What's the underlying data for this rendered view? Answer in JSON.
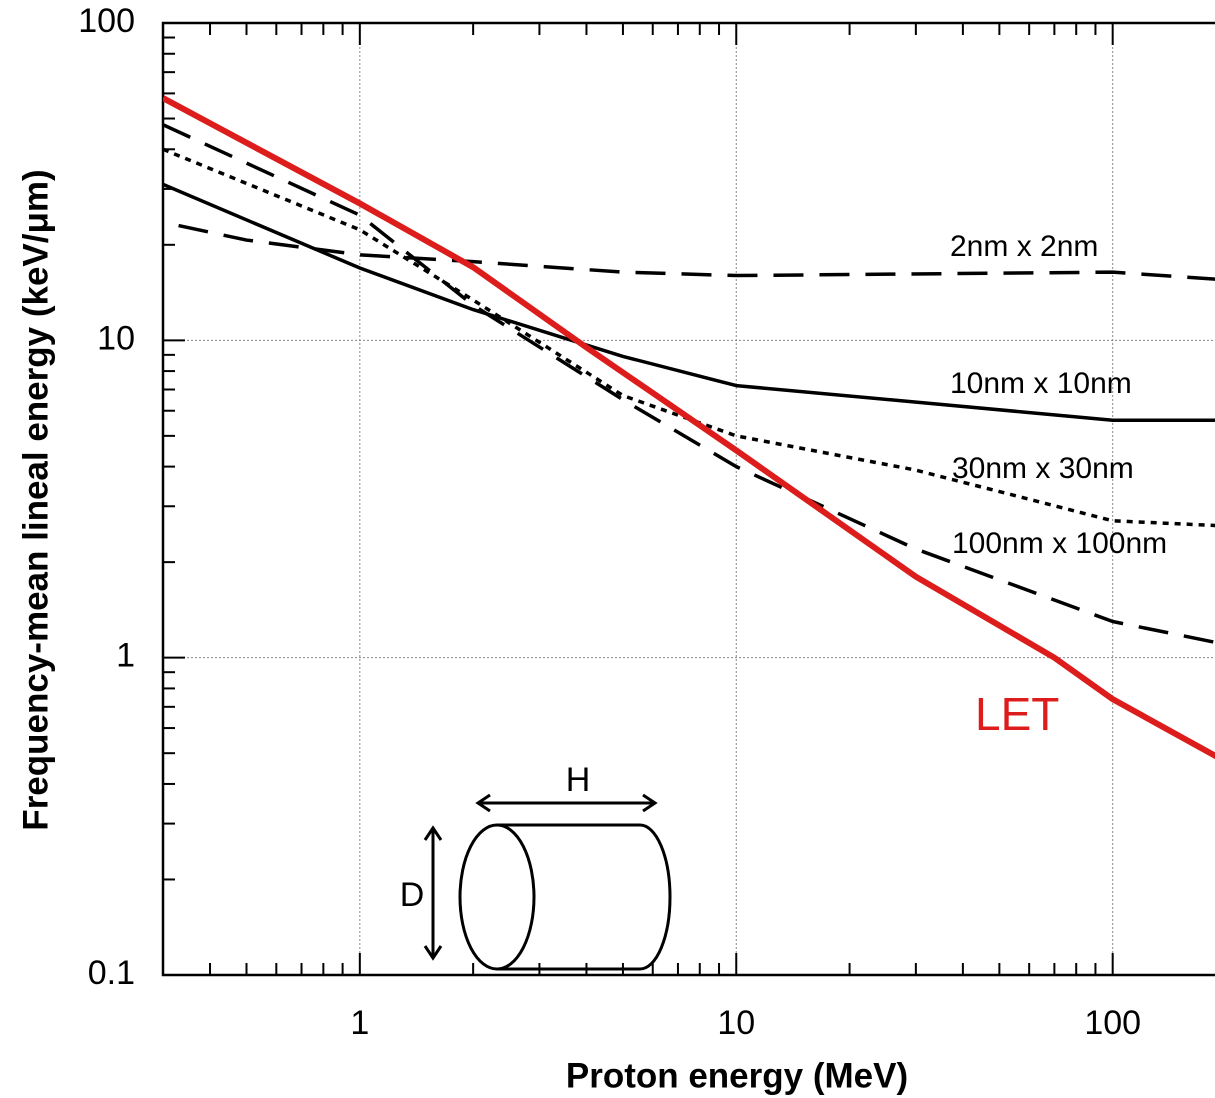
{
  "chart_data": {
    "type": "line",
    "x_label": "Proton energy (MeV)",
    "y_label": "Frequency-mean lineal energy (keV/μm)",
    "log_x": true,
    "log_y": true,
    "grid": true,
    "xlim": [
      0.3,
      200
    ],
    "ylim": [
      0.1,
      100
    ],
    "xticks": [
      1,
      10,
      100
    ],
    "yticks": [
      0.1,
      1,
      10,
      100
    ],
    "xminorticks": [
      0.3,
      0.4,
      0.5,
      0.6,
      0.7,
      0.8,
      0.9,
      2,
      3,
      4,
      5,
      6,
      7,
      8,
      9,
      20,
      30,
      40,
      50,
      60,
      70,
      80,
      90,
      200
    ],
    "yminorticks": [
      0.2,
      0.3,
      0.4,
      0.5,
      0.6,
      0.7,
      0.8,
      0.9,
      2,
      3,
      4,
      5,
      6,
      7,
      8,
      9,
      20,
      30,
      40,
      50,
      60,
      70,
      80,
      90
    ],
    "series": [
      {
        "name": "2nm x 2nm",
        "color": "#000000",
        "dash": "dashed",
        "x": [
          0.33,
          0.5,
          1,
          2,
          5,
          10,
          100,
          200
        ],
        "values": [
          23,
          20.7,
          18.6,
          17.7,
          16.4,
          16,
          16.4,
          15.5
        ]
      },
      {
        "name": "10nm x 10nm",
        "color": "#000000",
        "dash": "solid",
        "x": [
          0.3,
          1,
          2,
          5,
          10,
          100,
          200
        ],
        "values": [
          31,
          16.9,
          12.5,
          8.9,
          7.2,
          5.6,
          5.6
        ]
      },
      {
        "name": "30nm x 30nm",
        "color": "#000000",
        "dash": "dotted",
        "x": [
          0.3,
          1,
          2,
          5,
          10,
          30,
          100,
          200
        ],
        "values": [
          40,
          22.3,
          13.4,
          6.7,
          5.0,
          3.9,
          2.7,
          2.6
        ]
      },
      {
        "name": "100nm x 100nm",
        "color": "#000000",
        "dash": "dashed",
        "x": [
          0.3,
          1,
          2,
          5,
          10,
          30,
          100,
          200
        ],
        "values": [
          47.8,
          24.8,
          12.9,
          6.5,
          4.0,
          2.2,
          1.3,
          1.1
        ]
      },
      {
        "name": "LET",
        "color": "#dd1c1c",
        "dash": "solid",
        "x": [
          0.3,
          1,
          2,
          4,
          10,
          30,
          70,
          100,
          200
        ],
        "values": [
          58,
          27,
          17,
          9.5,
          4.5,
          1.8,
          1.0,
          0.74,
          0.47
        ]
      }
    ],
    "diagram_labels": [
      "H",
      "D"
    ]
  }
}
